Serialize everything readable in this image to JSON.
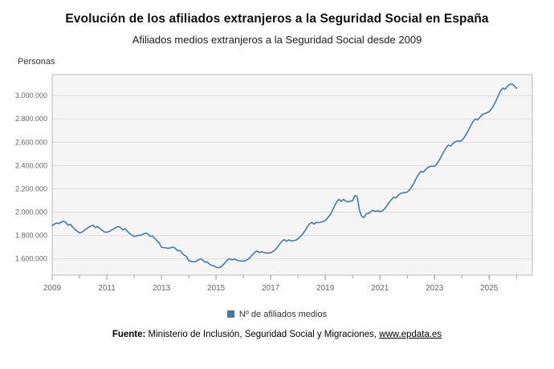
{
  "page": {
    "title": "Evolución de los afiliados extranjeros a la Seguridad Social en España",
    "subtitle": "Afiliados medios extranjeros a la Seguridad Social desde 2009",
    "y_axis_title": "Personas",
    "legend_label": "Nº de afiliados medios",
    "footer": {
      "source_label": "Fuente:",
      "source_text": " Ministerio de Inclusión, Seguridad Social y Migraciones, ",
      "source_link": "www.epdata.es"
    }
  },
  "colors": {
    "series": "#3f7cac",
    "plot_bg": "#f5f5f5",
    "grid": "#dddddd",
    "border": "#bbbbbb",
    "tick": "#999999"
  },
  "chart_data": {
    "type": "line",
    "title": "Evolución de los afiliados extranjeros a la Seguridad Social en España",
    "subtitle": "Afiliados medios extranjeros a la Seguridad Social desde 2009",
    "ylabel": "Personas",
    "xlabel": "",
    "grid": "horizontal",
    "legend_position": "bottom",
    "xlim": [
      2009,
      2026.58
    ],
    "ylim": [
      1460000,
      3180000
    ],
    "x_ticks": [
      2009,
      2011,
      2013,
      2015,
      2017,
      2019,
      2021,
      2023,
      2025
    ],
    "y_ticks": [
      1600000,
      1800000,
      2000000,
      2200000,
      2400000,
      2600000,
      2800000,
      3000000
    ],
    "y_tick_labels": [
      "1.600.000",
      "1.800.000",
      "2.000.000",
      "2.200.000",
      "2.400.000",
      "2.600.000",
      "2.800.000",
      "3.000.000"
    ],
    "series": [
      {
        "name": "Nº de afiliados medios",
        "start_year": 2009,
        "start_month": 1,
        "frequency": "monthly",
        "values": [
          1885000,
          1898000,
          1908000,
          1902000,
          1916000,
          1921000,
          1912000,
          1888000,
          1896000,
          1872000,
          1852000,
          1838000,
          1822000,
          1828000,
          1842000,
          1856000,
          1872000,
          1882000,
          1888000,
          1868000,
          1876000,
          1858000,
          1844000,
          1830000,
          1828000,
          1834000,
          1846000,
          1856000,
          1868000,
          1876000,
          1870000,
          1848000,
          1858000,
          1838000,
          1818000,
          1804000,
          1792000,
          1796000,
          1802000,
          1802000,
          1812000,
          1820000,
          1814000,
          1792000,
          1796000,
          1776000,
          1756000,
          1738000,
          1700000,
          1696000,
          1694000,
          1690000,
          1696000,
          1700000,
          1692000,
          1670000,
          1672000,
          1650000,
          1632000,
          1620000,
          1585000,
          1578000,
          1574000,
          1576000,
          1588000,
          1598000,
          1592000,
          1572000,
          1574000,
          1556000,
          1544000,
          1540000,
          1528000,
          1524000,
          1530000,
          1546000,
          1568000,
          1590000,
          1602000,
          1590000,
          1598000,
          1590000,
          1584000,
          1582000,
          1580000,
          1586000,
          1596000,
          1612000,
          1636000,
          1656000,
          1668000,
          1654000,
          1662000,
          1654000,
          1650000,
          1650000,
          1652000,
          1662000,
          1678000,
          1700000,
          1728000,
          1752000,
          1764000,
          1750000,
          1762000,
          1755000,
          1756000,
          1760000,
          1772000,
          1790000,
          1810000,
          1838000,
          1872000,
          1898000,
          1912000,
          1898000,
          1912000,
          1910000,
          1914000,
          1920000,
          1930000,
          1950000,
          1974000,
          2008000,
          2052000,
          2088000,
          2110000,
          2092000,
          2110000,
          2096000,
          2088000,
          2094000,
          2098000,
          2142000,
          2134000,
          2016000,
          1964000,
          1954000,
          1986000,
          1990000,
          2006000,
          2016000,
          2006000,
          2012000,
          2004000,
          2010000,
          2028000,
          2052000,
          2082000,
          2108000,
          2128000,
          2122000,
          2144000,
          2160000,
          2166000,
          2168000,
          2172000,
          2192000,
          2218000,
          2252000,
          2292000,
          2326000,
          2350000,
          2342000,
          2364000,
          2382000,
          2392000,
          2396000,
          2392000,
          2414000,
          2444000,
          2480000,
          2516000,
          2550000,
          2576000,
          2566000,
          2588000,
          2604000,
          2612000,
          2608000,
          2614000,
          2640000,
          2670000,
          2706000,
          2746000,
          2780000,
          2800000,
          2792000,
          2816000,
          2836000,
          2846000,
          2852000,
          2862000,
          2886000,
          2916000,
          2956000,
          3000000,
          3040000,
          3064000,
          3054000,
          3080000,
          3094000,
          3100000,
          3086000,
          3062000
        ]
      }
    ]
  }
}
